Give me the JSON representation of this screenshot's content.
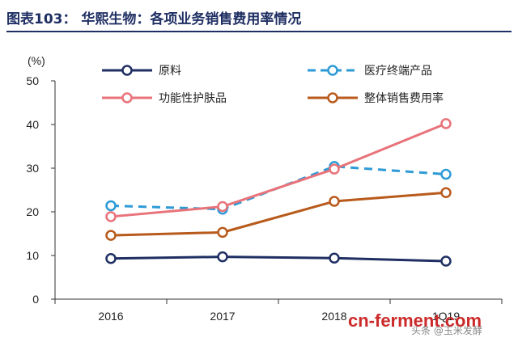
{
  "header": {
    "title": "图表103：   华熙生物：各项业务销售费用率情况"
  },
  "chart_data": {
    "type": "line",
    "title": "华熙生物：各项业务销售费用率情况",
    "categories": [
      "2016",
      "2017",
      "2018",
      "1Q19"
    ],
    "ylabel": "(%)",
    "ylim": [
      0,
      50
    ],
    "yticks": [
      0,
      10,
      20,
      30,
      40,
      50
    ],
    "series": [
      {
        "name": "原料",
        "values": [
          9.3,
          9.7,
          9.4,
          8.7
        ],
        "color": "#1f2f63",
        "dashed": false
      },
      {
        "name": "医疗终端产品",
        "values": [
          21.4,
          20.6,
          30.4,
          28.6
        ],
        "color": "#2e9ad6",
        "dashed": true
      },
      {
        "name": "功能性护肤品",
        "values": [
          18.9,
          21.2,
          29.8,
          40.2
        ],
        "color": "#e8737a",
        "dashed": false
      },
      {
        "name": "整体销售费用率",
        "values": [
          14.6,
          15.3,
          22.4,
          24.4
        ],
        "color": "#b85a1c",
        "dashed": false
      }
    ]
  },
  "watermark": {
    "text": "cn-ferment.com",
    "sub": "头条 @玉米发酵"
  }
}
